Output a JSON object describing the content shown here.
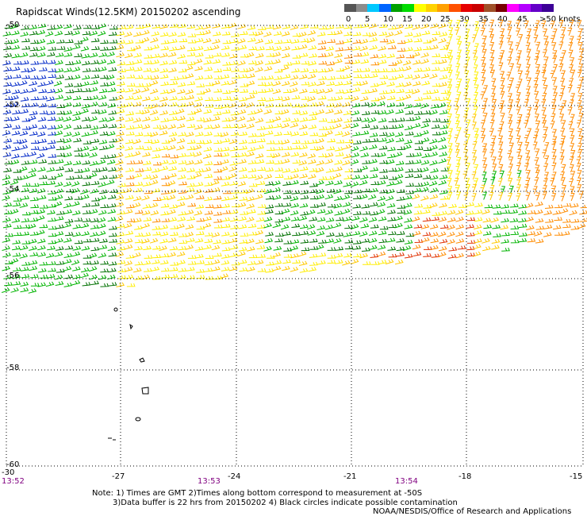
{
  "title": "Rapidscat Winds(12.5KM) 20150202 ascending",
  "legend": {
    "labels": [
      "0",
      "5",
      "10",
      "15",
      "20",
      "25",
      "30",
      "35",
      "40",
      "45",
      ">50 knots"
    ],
    "colors": [
      "#555555",
      "#8c8c8c",
      "#00c8ff",
      "#0064ff",
      "#00a000",
      "#00dc00",
      "#ffff00",
      "#ffd200",
      "#ffa000",
      "#ff5000",
      "#e60000",
      "#c80000",
      "#a05028",
      "#780000",
      "#ff00ff",
      "#b400ff",
      "#6400c8",
      "#3c0096"
    ]
  },
  "axes": {
    "lon_labels": [
      "-30",
      "-27",
      "-24",
      "-21",
      "-18",
      "-15"
    ],
    "lat_labels": [
      "-50",
      "-52",
      "-54",
      "-56",
      "-58",
      "-60"
    ]
  },
  "times": [
    "13:52",
    "13:53",
    "13:54"
  ],
  "notes": [
    "Note: 1) Times are GMT 2)Times along bottom correspond to measurement at -50S",
    "3)Data buffer is 22 hrs from 20150202 4) Black circles indicate possible contamination"
  ],
  "credit": "NOAA/NESDIS/Office of Research and Applications",
  "wind_colors": {
    "blue": "#0028c8",
    "dark_green": "#007000",
    "green": "#00b400",
    "yellow": "#ffee00",
    "gold": "#ffc800",
    "orange": "#ff8c00",
    "red": "#e03000"
  }
}
